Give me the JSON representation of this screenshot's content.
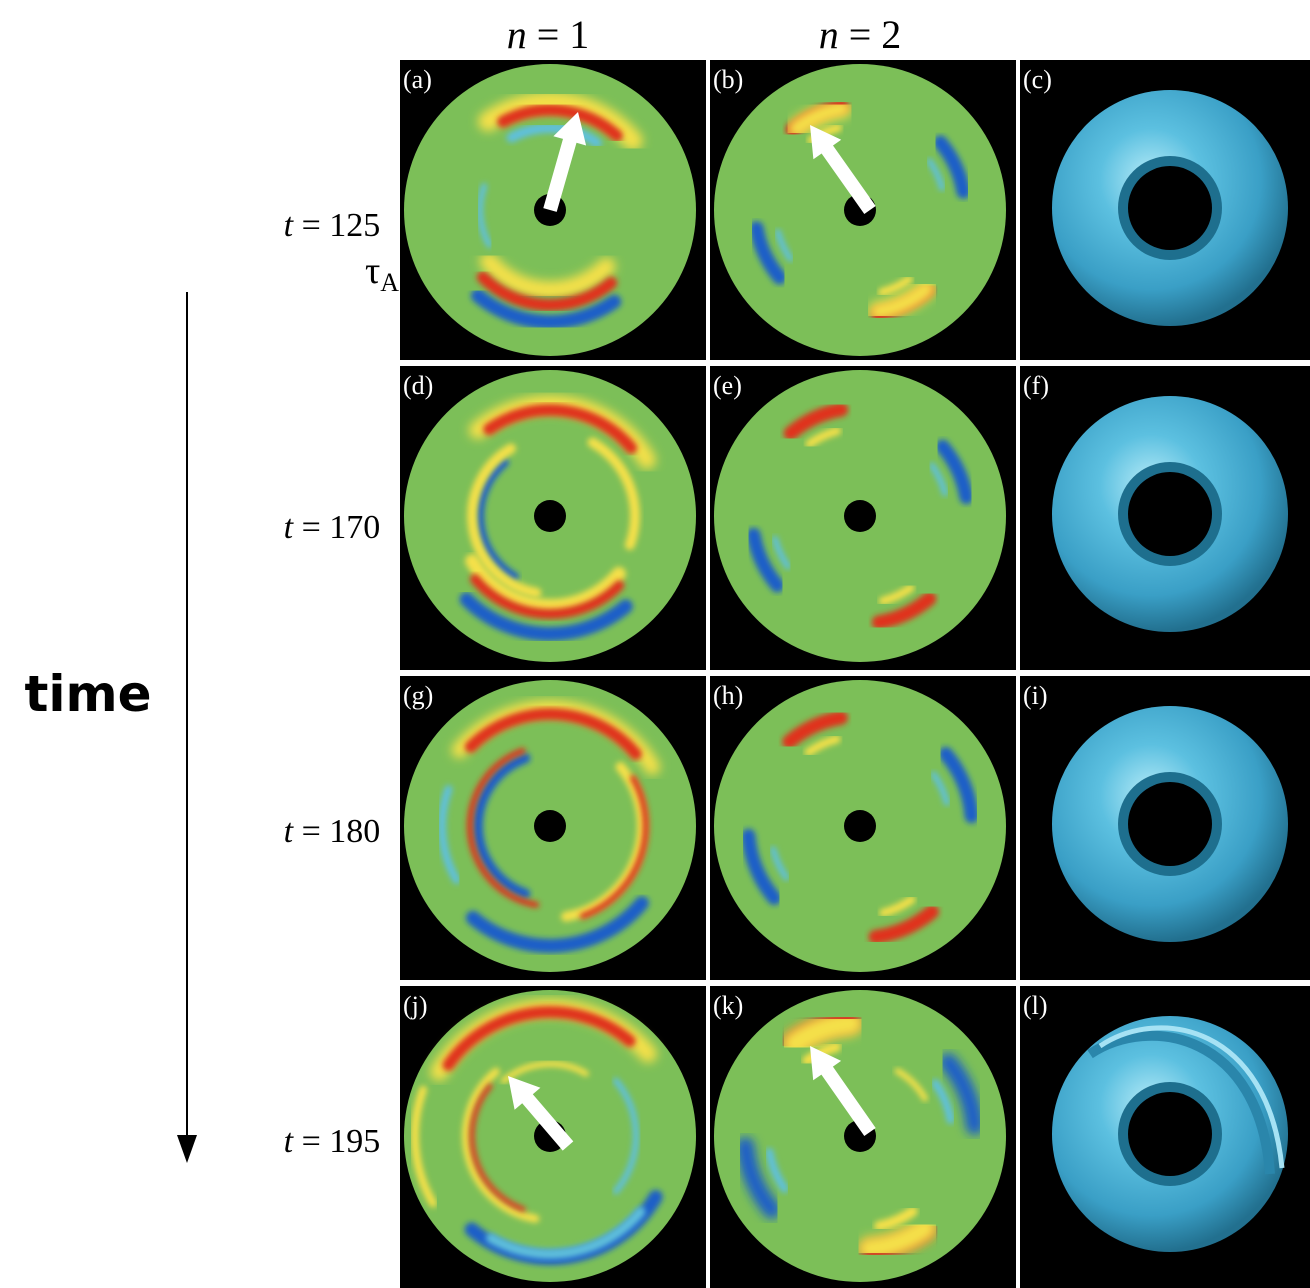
{
  "columns": [
    {
      "var": "n",
      "eq": " = 1"
    },
    {
      "var": "n",
      "eq": " = 2"
    }
  ],
  "rows": [
    {
      "t_var": "t",
      "t_val": " = 125",
      "unit": "τ",
      "unit_sub": "A",
      "labels": [
        "(a)",
        "(b)",
        "(c)"
      ],
      "arrows": true
    },
    {
      "t_var": "t",
      "t_val": " = 170",
      "labels": [
        "(d)",
        "(e)",
        "(f)"
      ],
      "arrows": false
    },
    {
      "t_var": "t",
      "t_val": " = 180",
      "labels": [
        "(g)",
        "(h)",
        "(i)"
      ],
      "arrows": false
    },
    {
      "t_var": "t",
      "t_val": " = 195",
      "labels": [
        "(j)",
        "(k)",
        "(l)"
      ],
      "arrows": true
    }
  ],
  "time_label": "time",
  "colors": {
    "panel_bg": "#000000",
    "disk_green": "#7cbf58",
    "red": "#e0321e",
    "yellow": "#f4e048",
    "blue": "#1e5fc8",
    "cyan": "#5fc0dc",
    "torus": "#4fb2d6",
    "arrow": "#ffffff"
  }
}
